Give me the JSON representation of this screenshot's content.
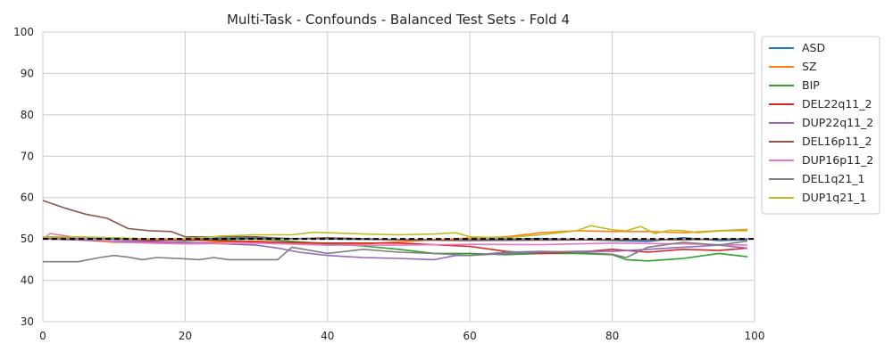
{
  "chart_data": {
    "type": "line",
    "title": "Multi-Task - Confounds - Balanced Test Sets - Fold 4",
    "xlabel": "",
    "ylabel": "",
    "xlim": [
      0,
      100
    ],
    "ylim": [
      30,
      100
    ],
    "xticks": [
      0,
      20,
      40,
      60,
      80,
      100
    ],
    "yticks": [
      30,
      40,
      50,
      60,
      70,
      80,
      90,
      100
    ],
    "grid": true,
    "legend_position": "outside-right-top",
    "reference_line": {
      "y": 50,
      "style": "dashed",
      "color": "#000000"
    },
    "series": [
      {
        "name": "ASD",
        "color": "#1f77b4",
        "points": [
          [
            0,
            50.2
          ],
          [
            10,
            50.0
          ],
          [
            20,
            50.0
          ],
          [
            30,
            50.2
          ],
          [
            40,
            50.0
          ],
          [
            50,
            49.8
          ],
          [
            60,
            49.8
          ],
          [
            70,
            50.1
          ],
          [
            80,
            49.6
          ],
          [
            85,
            49.4
          ],
          [
            90,
            50.3
          ],
          [
            95,
            49.6
          ],
          [
            99,
            49.8
          ]
        ]
      },
      {
        "name": "SZ",
        "color": "#ff7f0e",
        "points": [
          [
            0,
            50.5
          ],
          [
            10,
            49.2
          ],
          [
            20,
            49.0
          ],
          [
            30,
            49.5
          ],
          [
            35,
            49.0
          ],
          [
            40,
            48.5
          ],
          [
            45,
            48.8
          ],
          [
            50,
            49.3
          ],
          [
            55,
            49.8
          ],
          [
            60,
            50.2
          ],
          [
            65,
            50.5
          ],
          [
            70,
            51.5
          ],
          [
            75,
            52.0
          ],
          [
            80,
            51.8
          ],
          [
            85,
            51.8
          ],
          [
            90,
            51.5
          ],
          [
            95,
            52.0
          ],
          [
            99,
            52.3
          ]
        ]
      },
      {
        "name": "BIP",
        "color": "#2ca02c",
        "points": [
          [
            0,
            50.5
          ],
          [
            10,
            50.3
          ],
          [
            20,
            49.6
          ],
          [
            30,
            50.0
          ],
          [
            40,
            48.8
          ],
          [
            45,
            48.3
          ],
          [
            50,
            47.5
          ],
          [
            55,
            46.5
          ],
          [
            60,
            46.5
          ],
          [
            65,
            46.2
          ],
          [
            70,
            46.5
          ],
          [
            75,
            46.5
          ],
          [
            80,
            46.2
          ],
          [
            82,
            45.0
          ],
          [
            85,
            44.7
          ],
          [
            90,
            45.3
          ],
          [
            95,
            46.5
          ],
          [
            99,
            45.7
          ]
        ]
      },
      {
        "name": "DEL22q11_2",
        "color": "#d62728",
        "points": [
          [
            0,
            50.0
          ],
          [
            10,
            49.5
          ],
          [
            20,
            49.8
          ],
          [
            30,
            49.3
          ],
          [
            40,
            49.0
          ],
          [
            50,
            49.0
          ],
          [
            60,
            48.2
          ],
          [
            65,
            47.0
          ],
          [
            70,
            46.5
          ],
          [
            75,
            46.8
          ],
          [
            80,
            47.5
          ],
          [
            85,
            46.8
          ],
          [
            90,
            47.5
          ],
          [
            95,
            47.2
          ],
          [
            99,
            47.8
          ]
        ]
      },
      {
        "name": "DUP22q11_2",
        "color": "#9467bd",
        "points": [
          [
            0,
            50.0
          ],
          [
            10,
            49.5
          ],
          [
            20,
            49.2
          ],
          [
            30,
            48.5
          ],
          [
            33,
            47.8
          ],
          [
            36,
            46.8
          ],
          [
            40,
            46.0
          ],
          [
            45,
            45.5
          ],
          [
            50,
            45.3
          ],
          [
            55,
            45.0
          ],
          [
            58,
            46.0
          ],
          [
            60,
            46.0
          ],
          [
            65,
            46.5
          ],
          [
            70,
            46.8
          ],
          [
            75,
            47.0
          ],
          [
            80,
            47.0
          ],
          [
            85,
            47.5
          ],
          [
            90,
            48.0
          ],
          [
            95,
            48.5
          ],
          [
            99,
            47.8
          ]
        ]
      },
      {
        "name": "DEL16p11_2",
        "color": "#8c564b",
        "points": [
          [
            0,
            59.3
          ],
          [
            3,
            57.5
          ],
          [
            6,
            56.0
          ],
          [
            9,
            55.0
          ],
          [
            12,
            52.5
          ],
          [
            15,
            52.0
          ],
          [
            18,
            51.8
          ],
          [
            20,
            50.5
          ],
          [
            25,
            50.5
          ],
          [
            30,
            50.5
          ],
          [
            35,
            50.0
          ],
          [
            40,
            50.3
          ],
          [
            50,
            49.8
          ],
          [
            60,
            49.6
          ],
          [
            70,
            49.7
          ],
          [
            80,
            49.8
          ],
          [
            90,
            49.8
          ],
          [
            99,
            50.0
          ]
        ]
      },
      {
        "name": "DUP16p11_2",
        "color": "#e377c2",
        "points": [
          [
            0,
            50.0
          ],
          [
            1,
            51.3
          ],
          [
            5,
            50.3
          ],
          [
            10,
            49.3
          ],
          [
            15,
            49.0
          ],
          [
            20,
            48.8
          ],
          [
            30,
            49.0
          ],
          [
            40,
            48.5
          ],
          [
            50,
            48.5
          ],
          [
            60,
            48.7
          ],
          [
            70,
            48.6
          ],
          [
            80,
            49.0
          ],
          [
            90,
            48.8
          ],
          [
            99,
            48.5
          ]
        ]
      },
      {
        "name": "DEL1q21_1",
        "color": "#7f7f7f",
        "points": [
          [
            0,
            44.5
          ],
          [
            5,
            44.5
          ],
          [
            8,
            45.5
          ],
          [
            10,
            46.0
          ],
          [
            12,
            45.6
          ],
          [
            14,
            45.0
          ],
          [
            16,
            45.5
          ],
          [
            20,
            45.2
          ],
          [
            22,
            45.0
          ],
          [
            24,
            45.5
          ],
          [
            26,
            45.0
          ],
          [
            30,
            45.0
          ],
          [
            33,
            45.0
          ],
          [
            35,
            48.0
          ],
          [
            40,
            46.5
          ],
          [
            45,
            47.5
          ],
          [
            50,
            46.8
          ],
          [
            55,
            46.5
          ],
          [
            60,
            46.0
          ],
          [
            65,
            46.8
          ],
          [
            70,
            47.0
          ],
          [
            75,
            46.8
          ],
          [
            80,
            46.3
          ],
          [
            82,
            45.5
          ],
          [
            85,
            48.0
          ],
          [
            90,
            49.2
          ],
          [
            95,
            48.5
          ],
          [
            99,
            49.5
          ]
        ]
      },
      {
        "name": "DUP1q21_1",
        "color": "#bcbd22",
        "points": [
          [
            0,
            50.5
          ],
          [
            5,
            50.5
          ],
          [
            10,
            50.3
          ],
          [
            15,
            50.0
          ],
          [
            20,
            50.0
          ],
          [
            25,
            50.7
          ],
          [
            30,
            51.0
          ],
          [
            35,
            51.0
          ],
          [
            38,
            51.6
          ],
          [
            40,
            51.5
          ],
          [
            45,
            51.2
          ],
          [
            50,
            51.0
          ],
          [
            55,
            51.2
          ],
          [
            58,
            51.5
          ],
          [
            60,
            50.5
          ],
          [
            65,
            50.3
          ],
          [
            70,
            51.0
          ],
          [
            75,
            52.0
          ],
          [
            77,
            53.2
          ],
          [
            80,
            52.2
          ],
          [
            82,
            52.0
          ],
          [
            84,
            53.0
          ],
          [
            86,
            51.3
          ],
          [
            88,
            52.1
          ],
          [
            90,
            52.0
          ],
          [
            92,
            51.5
          ],
          [
            94,
            51.8
          ],
          [
            96,
            52.0
          ],
          [
            99,
            52.0
          ]
        ]
      }
    ]
  }
}
